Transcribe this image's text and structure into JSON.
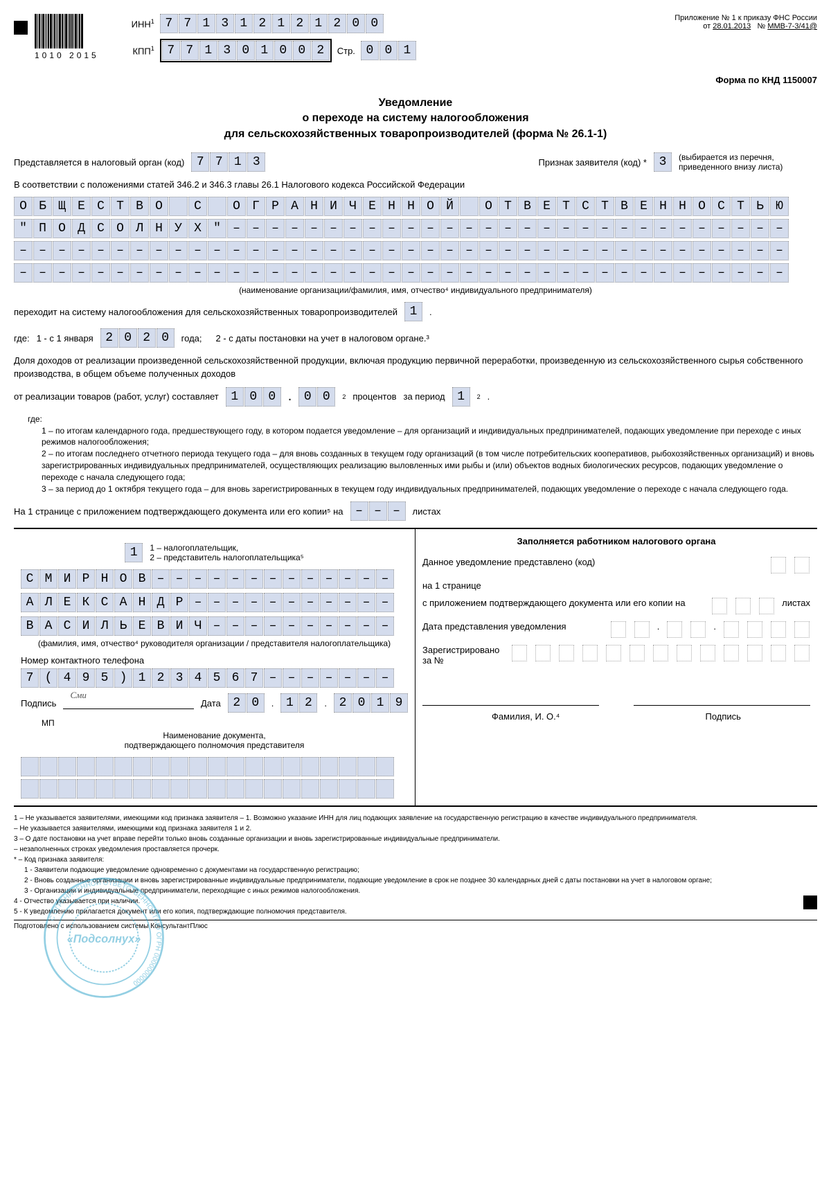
{
  "header": {
    "barcode_number": "1010 2015",
    "inn_label": "ИНН",
    "inn": [
      "7",
      "7",
      "1",
      "3",
      "1",
      "2",
      "1",
      "2",
      "1",
      "2",
      "0",
      "0"
    ],
    "kpp_label": "КПП",
    "kpp": [
      "7",
      "7",
      "1",
      "3",
      "0",
      "1",
      "0",
      "0",
      "2"
    ],
    "page_label": "Стр.",
    "page": [
      "0",
      "0",
      "1"
    ],
    "annex_line1": "Приложение № 1 к приказу ФНС России",
    "annex_line2_prefix": "от",
    "annex_date": "28.01.2013",
    "annex_num_prefix": "№",
    "annex_num": "ММВ-7-3/41@",
    "knd": "Форма по КНД 1150007"
  },
  "title": {
    "l1": "Уведомление",
    "l2": "о переходе на систему налогообложения",
    "l3": "для сельскохозяйственных товаропроизводителей (форма № 26.1-1)"
  },
  "tax_org": {
    "label": "Представляется в налоговый орган (код)",
    "code": [
      "7",
      "7",
      "1",
      "3"
    ],
    "applicant_label": "Признак заявителя (код) *",
    "applicant_code": "3",
    "applicant_note": "(выбирается из перечня, приведенного внизу листа)"
  },
  "basis": "В соответствии с положениями статей 346.2 и 346.3 главы 26.1 Налогового кодекса Российской Федерации",
  "org_name": {
    "line1": [
      "О",
      "Б",
      "Щ",
      "Е",
      "С",
      "Т",
      "В",
      "О",
      "",
      "С",
      "",
      "О",
      "Г",
      "Р",
      "А",
      "Н",
      "И",
      "Ч",
      "Е",
      "Н",
      "Н",
      "О",
      "Й",
      "",
      "О",
      "Т",
      "В",
      "Е",
      "Т",
      "С",
      "Т",
      "В",
      "Е",
      "Н",
      "Н",
      "О",
      "С",
      "Т",
      "Ь",
      "Ю"
    ],
    "line2": [
      "\"",
      "П",
      "О",
      "Д",
      "С",
      "О",
      "Л",
      "Н",
      "У",
      "Х",
      "\"",
      "–",
      "–",
      "–",
      "–",
      "–",
      "–",
      "–",
      "–",
      "–",
      "–",
      "–",
      "–",
      "–",
      "–",
      "–",
      "–",
      "–",
      "–",
      "–",
      "–",
      "–",
      "–",
      "–",
      "–",
      "–",
      "–",
      "–",
      "–",
      "–"
    ],
    "line3": [
      "–",
      "–",
      "–",
      "–",
      "–",
      "–",
      "–",
      "–",
      "–",
      "–",
      "–",
      "–",
      "–",
      "–",
      "–",
      "–",
      "–",
      "–",
      "–",
      "–",
      "–",
      "–",
      "–",
      "–",
      "–",
      "–",
      "–",
      "–",
      "–",
      "–",
      "–",
      "–",
      "–",
      "–",
      "–",
      "–",
      "–",
      "–",
      "–",
      "–"
    ],
    "line4": [
      "–",
      "–",
      "–",
      "–",
      "–",
      "–",
      "–",
      "–",
      "–",
      "–",
      "–",
      "–",
      "–",
      "–",
      "–",
      "–",
      "–",
      "–",
      "–",
      "–",
      "–",
      "–",
      "–",
      "–",
      "–",
      "–",
      "–",
      "–",
      "–",
      "–",
      "–",
      "–",
      "–",
      "–",
      "–",
      "–",
      "–",
      "–",
      "–",
      "–"
    ],
    "caption": "(наименование организации/фамилия, имя, отчество⁴ индивидуального предпринимателя)"
  },
  "transition": {
    "text": "переходит на систему налогообложения для сельскохозяйственных товаропроизводителей",
    "code": "1",
    "where_label": "где:",
    "opt1_prefix": "1 - с 1 января",
    "year": [
      "2",
      "0",
      "2",
      "0"
    ],
    "year_suffix": "года;",
    "opt2": "2 - с даты постановки на учет в налоговом органе.³"
  },
  "income": {
    "para": "Доля доходов от реализации произведенной сельскохозяйственной продукции, включая продукцию первичной переработки, произведенную из сельскохозяйственного сырья собственного производства, в общем объеме полученных доходов",
    "prefix": "от реализации товаров (работ, услуг) составляет",
    "int": [
      "1",
      "0",
      "0"
    ],
    "dec": [
      "0",
      "0"
    ],
    "percent_label": "процентов",
    "period_label": "за период",
    "period": "1"
  },
  "period_notes": {
    "where": "где:",
    "n1": "1 – по итогам календарного года, предшествующего году, в котором подается уведомление – для организаций и индивидуальных предпринимателей, подающих уведомление при переходе с иных режимов налогообложения;",
    "n2": "2 – по итогам последнего отчетного периода текущего года – для вновь созданных в текущем году организаций (в том числе потребительских кооперативов, рыбохозяйственных организаций) и вновь зарегистрированных индивидуальных предпринимателей, осуществляющих реализацию выловленных ими рыбы и (или) объектов водных биологических ресурсов, подающих уведомление о переходе с начала следующего года;",
    "n3": "3 – за период до 1 октября текущего года – для вновь зарегистрированных в текущем году индивидуальных предпринимателей, подающих уведомление о переходе с начала следующего года."
  },
  "pages": {
    "text_prefix": "На 1 странице с приложением подтверждающего документа или его копии⁵ на",
    "sheets": [
      "–",
      "–",
      "–"
    ],
    "text_suffix": "листах"
  },
  "signer": {
    "type_code": "1",
    "type_legend": "1 – налогоплательщик,\n2 – представитель налогоплательщика⁵",
    "surname": [
      "С",
      "М",
      "И",
      "Р",
      "Н",
      "О",
      "В",
      "–",
      "–",
      "–",
      "–",
      "–",
      "–",
      "–",
      "–",
      "–",
      "–",
      "–",
      "–",
      "–"
    ],
    "name": [
      "А",
      "Л",
      "Е",
      "К",
      "С",
      "А",
      "Н",
      "Д",
      "Р",
      "–",
      "–",
      "–",
      "–",
      "–",
      "–",
      "–",
      "–",
      "–",
      "–",
      "–"
    ],
    "patronymic": [
      "В",
      "А",
      "С",
      "И",
      "Л",
      "Ь",
      "Е",
      "В",
      "И",
      "Ч",
      "–",
      "–",
      "–",
      "–",
      "–",
      "–",
      "–",
      "–",
      "–",
      "–"
    ],
    "caption": "(фамилия, имя, отчество⁴ руководителя организации / представителя налогоплательщика)",
    "phone_label": "Номер контактного телефона",
    "phone": [
      "7",
      "(",
      "4",
      "9",
      "5",
      ")",
      "1",
      "2",
      "3",
      "4",
      "5",
      "6",
      "7",
      "–",
      "–",
      "–",
      "–",
      "–",
      "–",
      "–"
    ],
    "sign_label": "Подпись",
    "date_label": "Дата",
    "date_d": [
      "2",
      "0"
    ],
    "date_m": [
      "1",
      "2"
    ],
    "date_y": [
      "2",
      "0",
      "1",
      "9"
    ],
    "mp": "МП",
    "doc_caption": "Наименование документа,\nподтверждающего полномочия представителя",
    "stamp_text": "«Подсолнух»",
    "stamp_ring": "С ОГРАНИЧЕННОЙ ОТВЕТСТВЕННОСТЬЮ ОГРН 0000000000"
  },
  "official": {
    "title": "Заполняется работником налогового органа",
    "l1": "Данное уведомление представлено (код)",
    "l2": "на 1 странице",
    "l3": "с приложением подтверждающего документа или его копии на",
    "l3_suffix": "листах",
    "l4": "Дата представления уведомления",
    "l5": "Зарегистрировано за №",
    "fio": "Фамилия, И. О.⁴",
    "sign": "Подпись"
  },
  "footnotes": {
    "f1": "1 – Не указывается заявителями, имеющими код признака заявителя – 1. Возможно указание ИНН для лиц подающих заявление на государственную регистрацию в качестве индивидуального предпринимателя.",
    "f2": "– Не указывается заявителями, имеющими код признака заявителя 1 и 2.",
    "f3": "3 – О дате постановки на учет вправе перейти только вновь созданные организации и вновь зарегистрированные индивидуальные предприниматели.",
    "f3b": "– незаполненных строках уведомления проставляется прочерк.",
    "f4": "* – Код признака заявителя:",
    "f4a": "1 - Заявители подающие уведомление одновременно с документами на государственную регистрацию;",
    "f4b": "2 - Вновь созданные организации и вновь зарегистрированные индивидуальные предприниматели, подающие уведомление в срок не позднее 30 календарных дней с даты постановки на учет в налоговом органе;",
    "f4c": "3 - Организации и индивидуальные предприниматели, переходящие с иных режимов налогообложения.",
    "f5": "4 - Отчество указывается при наличии.",
    "f6": "5 - К уведомлению прилагается документ или его копия, подтверждающие полномочия представителя."
  },
  "footer": "Подготовлено с использованием системы КонсультантПлюс",
  "colors": {
    "cell_bg": "#d4dced",
    "stamp": "#2aa0c8"
  }
}
